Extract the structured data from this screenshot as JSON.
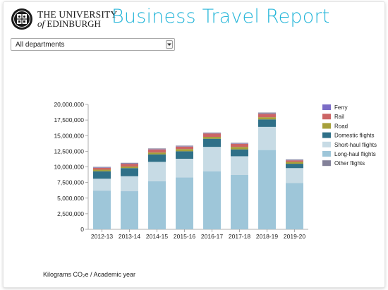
{
  "header": {
    "university_line1": "THE UNIVERSITY",
    "university_of": "of",
    "university_line2": "EDINBURGH",
    "report_title": "Business Travel Report"
  },
  "filter": {
    "department_selected": "All departments"
  },
  "footnote": "Kilograms CO₂e / Academic year",
  "colors": {
    "title": "#26b6d9",
    "Ferry": "#7b6cc6",
    "Rail": "#cc6565",
    "Road": "#a6a03a",
    "Domestic flights": "#2f7088",
    "Short-haul flights": "#c7dbe5",
    "Long-haul flights": "#9ec6d9",
    "Other flights": "#838199"
  },
  "icons": {
    "crest": "university-crest-icon",
    "dropdown": "chevron-down-icon"
  },
  "chart_data": {
    "type": "bar",
    "stacked": true,
    "categories": [
      "2012-13",
      "2013-14",
      "2014-15",
      "2015-16",
      "2016-17",
      "2017-18",
      "2018-19",
      "2019-20"
    ],
    "ylim": [
      0,
      20000000
    ],
    "yticks": [
      "0",
      "2,500,000",
      "5,000,000",
      "7,500,000",
      "10,000,000",
      "12,500,000",
      "15,000,000",
      "17,500,000",
      "20,000,000"
    ],
    "grid": false,
    "legend_position": "right",
    "series": [
      {
        "name": "Long-haul flights",
        "values": [
          6200000,
          6100000,
          7700000,
          8300000,
          9300000,
          8700000,
          12700000,
          7400000
        ]
      },
      {
        "name": "Short-haul flights",
        "values": [
          1900000,
          2400000,
          3100000,
          3000000,
          3900000,
          3000000,
          3700000,
          2400000
        ]
      },
      {
        "name": "Domestic flights",
        "values": [
          1200000,
          1300000,
          1200000,
          1200000,
          1300000,
          1100000,
          1200000,
          700000
        ]
      },
      {
        "name": "Road",
        "values": [
          250000,
          250000,
          300000,
          350000,
          300000,
          400000,
          350000,
          300000
        ]
      },
      {
        "name": "Rail",
        "values": [
          300000,
          450000,
          500000,
          400000,
          550000,
          500000,
          550000,
          250000
        ]
      },
      {
        "name": "Ferry",
        "values": [
          50000,
          50000,
          50000,
          50000,
          50000,
          50000,
          50000,
          50000
        ]
      },
      {
        "name": "Other flights",
        "values": [
          100000,
          100000,
          100000,
          100000,
          100000,
          100000,
          150000,
          100000
        ]
      }
    ],
    "legend": [
      "Ferry",
      "Rail",
      "Road",
      "Domestic flights",
      "Short-haul flights",
      "Long-haul flights",
      "Other flights"
    ]
  }
}
